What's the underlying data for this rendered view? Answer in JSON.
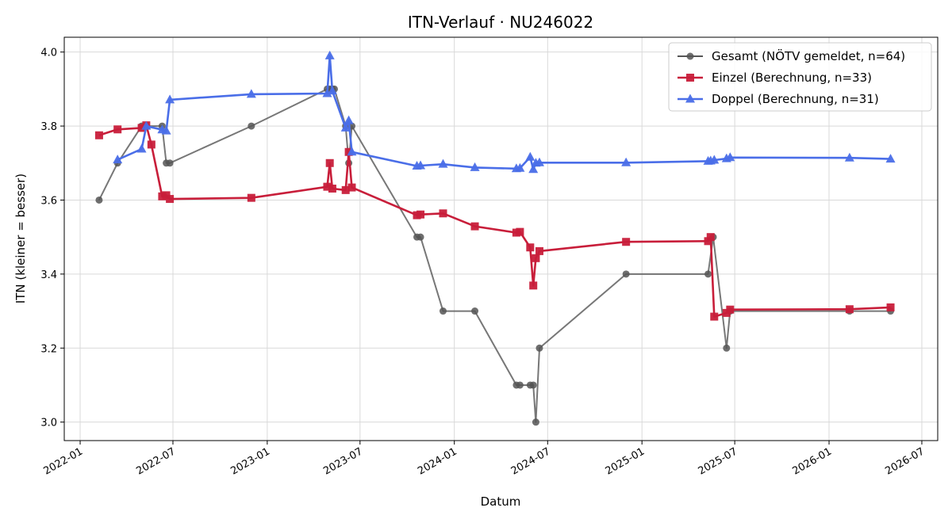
{
  "chart_data": {
    "type": "line",
    "title": "ITN-Verlauf · NU246022",
    "xlabel": "Datum",
    "ylabel": "ITN  (kleiner = besser)",
    "xlim": [
      "2021-12-01",
      "2026-08-01"
    ],
    "ylim": [
      2.95,
      4.04
    ],
    "x_ticks": [
      "2022-01",
      "2022-07",
      "2023-01",
      "2023-07",
      "2024-01",
      "2024-07",
      "2025-01",
      "2025-07",
      "2026-01",
      "2026-07"
    ],
    "y_ticks": [
      "3.0",
      "3.2",
      "3.4",
      "3.6",
      "3.8",
      "4.0"
    ],
    "grid": true,
    "legend_position": "top-right",
    "series": [
      {
        "name": "Gesamt (NÖTV gemeldet, n=64)",
        "color": "#555555",
        "marker": "circle",
        "x": [
          "2022-02-07",
          "2022-03-15",
          "2022-05-01",
          "2022-05-10",
          "2022-06-10",
          "2022-06-18",
          "2022-06-25",
          "2022-12-01",
          "2023-04-28",
          "2023-05-03",
          "2023-05-08",
          "2023-05-12",
          "2023-06-03",
          "2023-06-09",
          "2023-06-15",
          "2023-10-20",
          "2023-10-27",
          "2023-12-10",
          "2024-02-10",
          "2024-05-01",
          "2024-05-08",
          "2024-05-28",
          "2024-06-03",
          "2024-06-08",
          "2024-06-15",
          "2024-12-01",
          "2025-05-10",
          "2025-05-20",
          "2025-06-15",
          "2025-06-22",
          "2026-02-10",
          "2026-05-01"
        ],
        "y": [
          3.6,
          3.7,
          3.8,
          3.8,
          3.8,
          3.7,
          3.7,
          3.8,
          3.9,
          3.9,
          3.9,
          3.9,
          3.8,
          3.7,
          3.8,
          3.5,
          3.5,
          3.3,
          3.3,
          3.1,
          3.1,
          3.1,
          3.1,
          3.0,
          3.2,
          3.4,
          3.4,
          3.5,
          3.2,
          3.3,
          3.3,
          3.3
        ]
      },
      {
        "name": "Einzel (Berechnung, n=33)",
        "color": "#c81e3a",
        "marker": "square",
        "x": [
          "2022-02-07",
          "2022-03-15",
          "2022-05-01",
          "2022-05-10",
          "2022-05-20",
          "2022-06-10",
          "2022-06-18",
          "2022-06-25",
          "2022-12-01",
          "2023-04-28",
          "2023-05-03",
          "2023-05-08",
          "2023-06-03",
          "2023-06-09",
          "2023-06-15",
          "2023-10-20",
          "2023-10-27",
          "2023-12-10",
          "2024-02-10",
          "2024-05-01",
          "2024-05-08",
          "2024-05-28",
          "2024-06-03",
          "2024-06-08",
          "2024-06-15",
          "2024-12-01",
          "2025-05-10",
          "2025-05-15",
          "2025-05-22",
          "2025-06-15",
          "2025-06-22",
          "2026-02-10",
          "2026-05-01"
        ],
        "y": [
          3.775,
          3.791,
          3.795,
          3.802,
          3.75,
          3.61,
          3.613,
          3.603,
          3.606,
          3.636,
          3.7,
          3.631,
          3.627,
          3.73,
          3.634,
          3.559,
          3.561,
          3.564,
          3.529,
          3.512,
          3.514,
          3.472,
          3.369,
          3.443,
          3.462,
          3.487,
          3.489,
          3.5,
          3.285,
          3.295,
          3.304,
          3.305,
          3.31
        ]
      },
      {
        "name": "Doppel (Berechnung, n=31)",
        "color": "#4a6ee8",
        "marker": "triangle",
        "x": [
          "2022-03-15",
          "2022-05-01",
          "2022-05-10",
          "2022-06-10",
          "2022-06-18",
          "2022-06-25",
          "2022-12-01",
          "2023-04-28",
          "2023-05-03",
          "2023-05-08",
          "2023-06-03",
          "2023-06-09",
          "2023-06-15",
          "2023-10-20",
          "2023-10-27",
          "2023-12-10",
          "2024-02-10",
          "2024-05-01",
          "2024-05-08",
          "2024-05-28",
          "2024-06-03",
          "2024-06-08",
          "2024-06-15",
          "2024-12-01",
          "2025-05-10",
          "2025-05-15",
          "2025-05-22",
          "2025-06-15",
          "2025-06-22",
          "2026-02-10",
          "2026-05-01"
        ],
        "y": [
          3.709,
          3.738,
          3.8,
          3.79,
          3.787,
          3.871,
          3.886,
          3.888,
          3.99,
          3.895,
          3.795,
          3.815,
          3.73,
          3.692,
          3.693,
          3.697,
          3.688,
          3.685,
          3.686,
          3.716,
          3.683,
          3.7,
          3.701,
          3.701,
          3.705,
          3.706,
          3.708,
          3.712,
          3.715,
          3.714,
          3.711
        ]
      }
    ]
  }
}
